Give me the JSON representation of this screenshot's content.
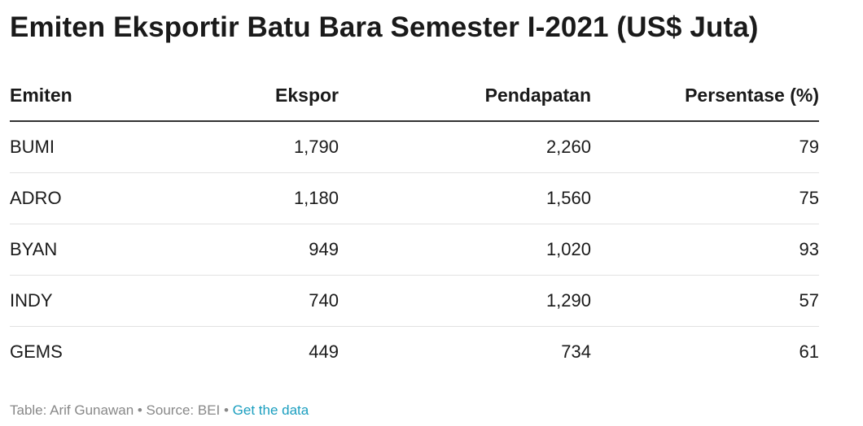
{
  "title": "Emiten Eksportir Batu Bara Semester I-2021 (US$ Juta)",
  "chart_data": {
    "type": "table",
    "title": "Emiten Eksportir Batu Bara Semester I-2021 (US$ Juta)",
    "columns": [
      "Emiten",
      "Ekspor",
      "Pendapatan",
      "Persentase (%)"
    ],
    "rows": [
      [
        "BUMI",
        "1,790",
        "2,260",
        "79"
      ],
      [
        "ADRO",
        "1,180",
        "1,560",
        "75"
      ],
      [
        "BYAN",
        "949",
        "1,020",
        "93"
      ],
      [
        "INDY",
        "740",
        "1,290",
        "57"
      ],
      [
        "GEMS",
        "449",
        "734",
        "61"
      ]
    ]
  },
  "footer": {
    "text": "Table: Arif Gunawan • Source: BEI • ",
    "link_label": "Get the data"
  },
  "colors": {
    "link": "#1a9ebf",
    "footer_text": "#888888",
    "header_rule": "#333333",
    "row_rule": "#e2e2e2"
  }
}
